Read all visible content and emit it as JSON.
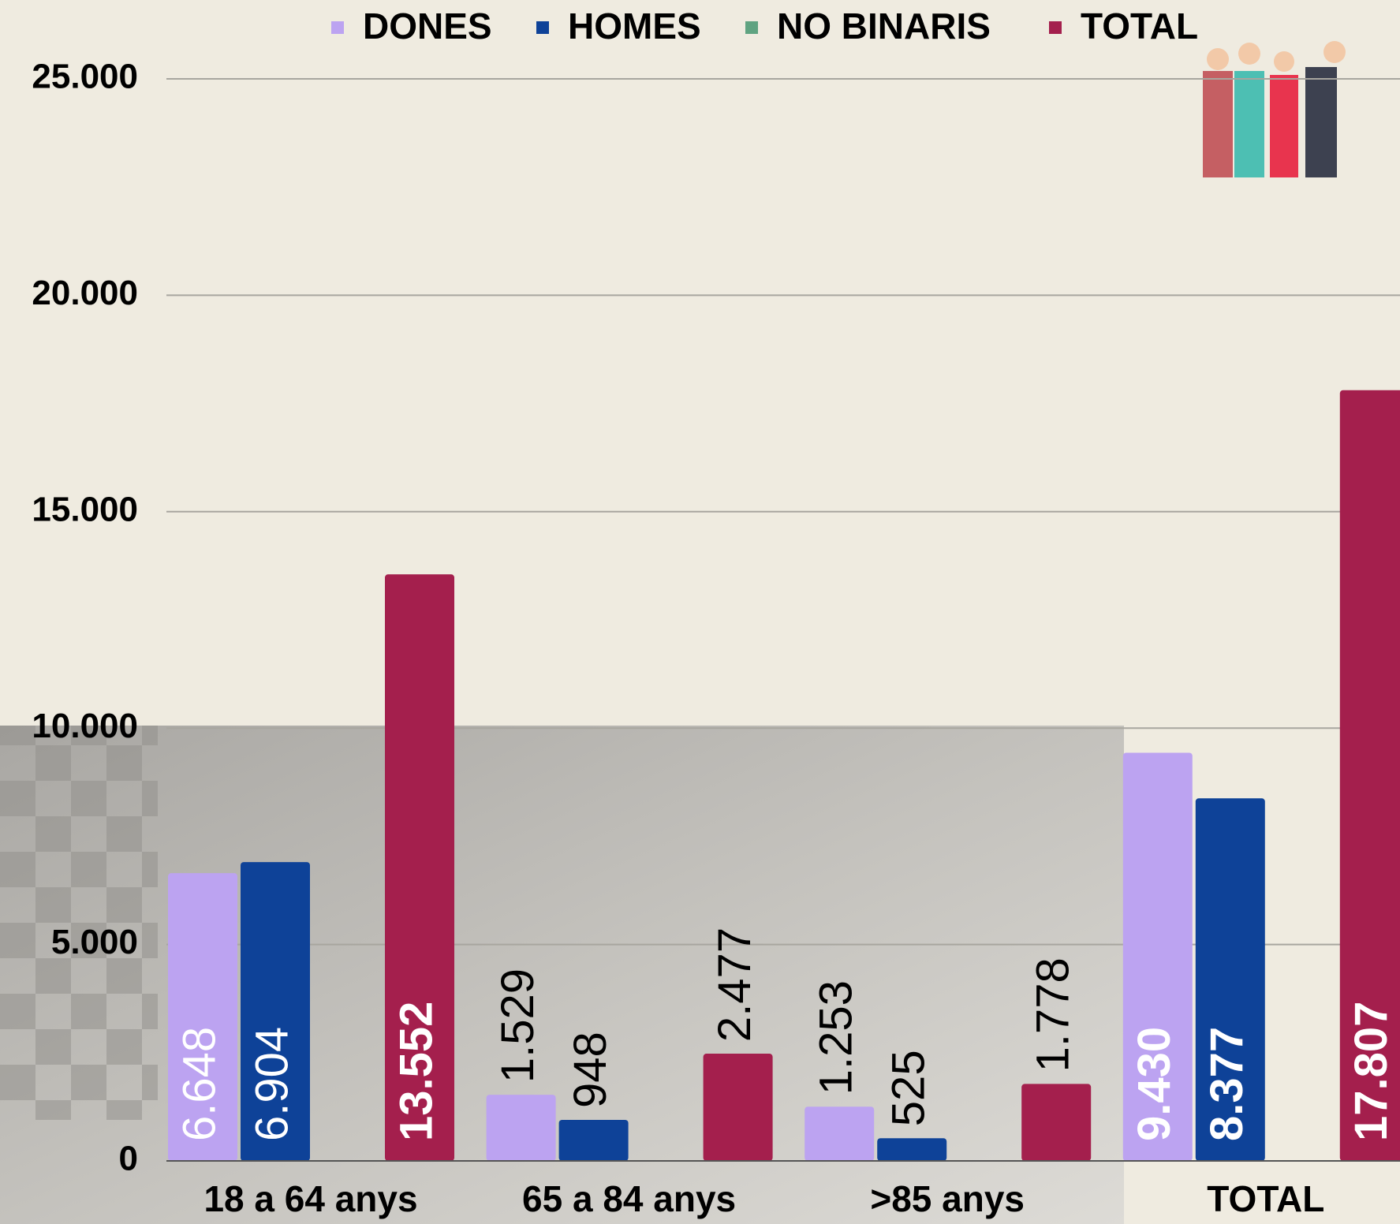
{
  "chart_data": {
    "type": "bar",
    "categories": [
      "18 a 64 anys",
      "65 a 84 anys",
      ">85 anys",
      "TOTAL"
    ],
    "series": [
      {
        "name": "DONES",
        "color": "#bca3f1",
        "values": [
          6648,
          1529,
          1253,
          9430
        ],
        "value_labels": [
          "6.648",
          "1.529",
          "1.253",
          "9.430"
        ]
      },
      {
        "name": "HOMES",
        "color": "#0e4298",
        "values": [
          6904,
          948,
          525,
          8377
        ],
        "value_labels": [
          "6.904",
          "948",
          "525",
          "8.377"
        ]
      },
      {
        "name": "NO BINARIS",
        "color": "#5fa381",
        "values": [
          null,
          null,
          null,
          null
        ]
      },
      {
        "name": "TOTAL",
        "color": "#a41f4d",
        "values": [
          13552,
          2477,
          1778,
          17807
        ],
        "value_labels": [
          "13.552",
          "2.477",
          "1.778",
          "17.807"
        ]
      }
    ],
    "ylim": [
      0,
      25000
    ],
    "yticks": [
      0,
      {
        "value": 5000,
        "label": "5.000"
      },
      {
        "value": 10000,
        "label": "10.000"
      },
      {
        "value": 15000,
        "label": "15.000"
      },
      {
        "value": 20000,
        "label": "20.000"
      },
      {
        "value": 25000,
        "label": "25.000"
      }
    ],
    "grid": true
  }
}
